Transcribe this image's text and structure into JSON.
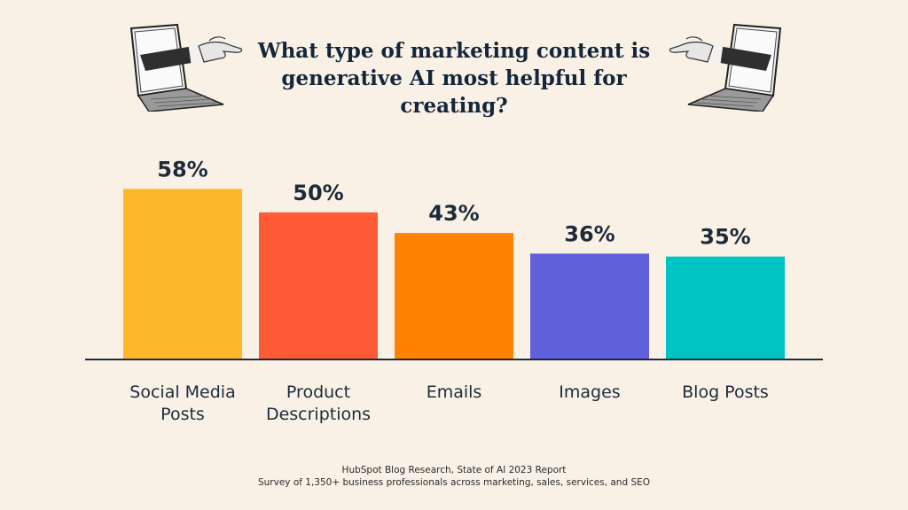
{
  "chart_data": {
    "type": "bar",
    "title_lines": [
      "What type of marketing content is",
      "generative AI most helpful for creating?"
    ],
    "categories": [
      [
        "Social Media",
        "Posts"
      ],
      [
        "Product",
        "Descriptions"
      ],
      [
        "Emails"
      ],
      [
        "Images"
      ],
      [
        "Blog Posts"
      ]
    ],
    "values": [
      58,
      50,
      43,
      36,
      35
    ],
    "value_labels": [
      "58%",
      "50%",
      "43%",
      "36%",
      "35%"
    ],
    "colors": [
      "#fdb72a",
      "#ff5a36",
      "#ff8200",
      "#6060dd",
      "#00c3c3"
    ],
    "ylim": [
      0,
      60
    ],
    "grid": false,
    "legend": "none"
  },
  "footer": {
    "line1": "HubSpot Blog Research, State of AI 2023 Report",
    "line2": "Survey of 1,350+ business professionals across marketing, sales, services, and SEO"
  },
  "illustrations": {
    "left": "hand-from-laptop-left-icon",
    "right": "hand-from-laptop-right-icon"
  }
}
